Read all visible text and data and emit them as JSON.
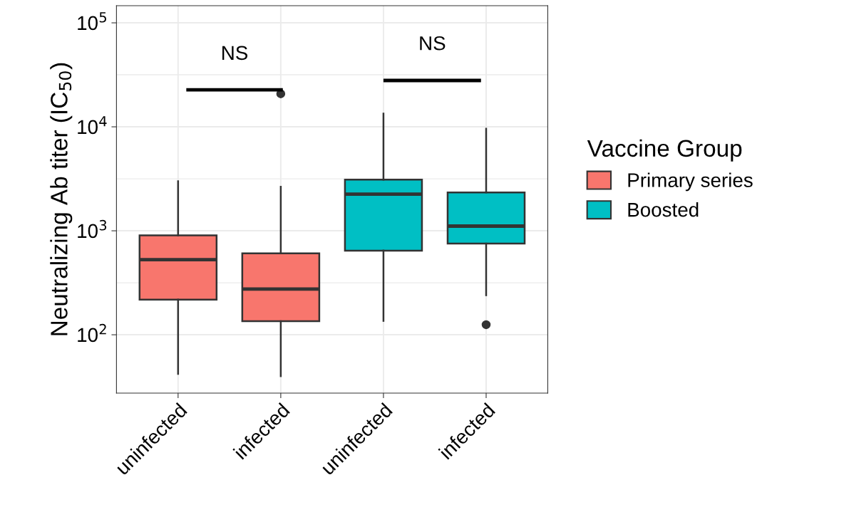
{
  "chart_data": {
    "type": "box",
    "ylabel": "Neutralizing Ab titer (IC$_{50}$)",
    "legend_title": "Vaccine Group",
    "categories": [
      "uninfected",
      "infected",
      "uninfected",
      "infected"
    ],
    "series": [
      {
        "name": "Primary series",
        "color": "#f8766d",
        "boxes": [
          {
            "low": 42,
            "q1": 218,
            "median": 528,
            "q3": 902,
            "high": 3000
          },
          {
            "low": 40,
            "q1": 135,
            "median": 275,
            "q3": 608,
            "high": 2650,
            "outliers": [
              20800
            ]
          },
          null,
          null
        ]
      },
      {
        "name": "Boosted",
        "color": "#00bfc4",
        "boxes": [
          null,
          null,
          {
            "low": 136,
            "q1": 645,
            "median": 2250,
            "q3": 3110,
            "high": 13400
          },
          {
            "low": 240,
            "q1": 753,
            "median": 1110,
            "q3": 2340,
            "high": 9600,
            "outliers": [
              125
            ]
          }
        ]
      }
    ],
    "log": true,
    "ylim": [
      27.5,
      146000
    ],
    "yticks": [
      {
        "value": 100,
        "label": "10$^{2}$"
      },
      {
        "value": 1000,
        "label": "10$^{3}$"
      },
      {
        "value": 10000,
        "label": "10$^{4}$"
      },
      {
        "value": 100000,
        "label": "10$^{5}$"
      }
    ],
    "grid": true,
    "legend": "right",
    "annotations": [
      "NS",
      "NS"
    ]
  }
}
